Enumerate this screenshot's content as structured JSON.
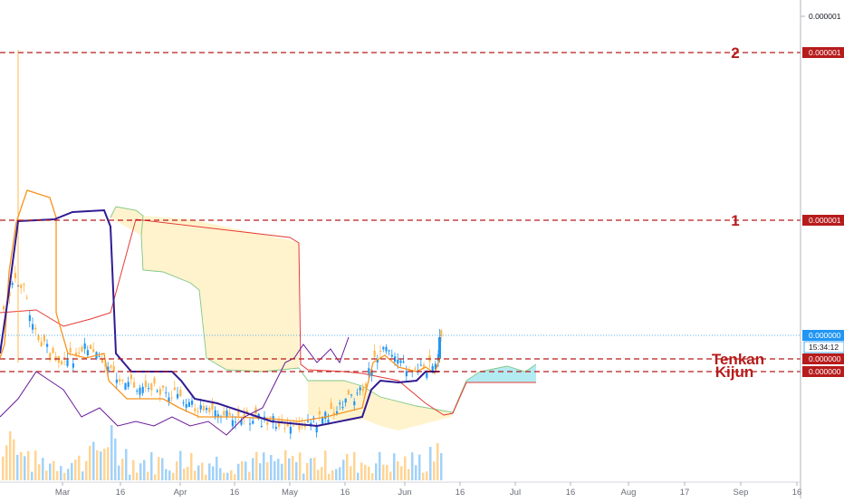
{
  "chart_data": {
    "type": "candlestick",
    "x_ticks": [
      "Mar",
      "16",
      "Apr",
      "16",
      "May",
      "16",
      "Jun",
      "16",
      "Jul",
      "16",
      "Aug",
      "17",
      "Sep",
      "16"
    ],
    "price_axis": {
      "top_label": "0.000001",
      "last_price": "0.000000",
      "countdown": "15:34:12"
    },
    "horizontal_lines": [
      {
        "id": "level-2",
        "label": "2",
        "price_label": "0.000001",
        "color": "#b71c1c",
        "style": "dashed"
      },
      {
        "id": "level-1",
        "label": "1",
        "price_label": "0.000001",
        "color": "#b71c1c",
        "style": "dashed"
      },
      {
        "id": "tenkan",
        "label": "Tenkan",
        "price_label": "0.000000",
        "color": "#b71c1c",
        "style": "dashed"
      },
      {
        "id": "kijun",
        "label": "Kijun",
        "price_label": "0.000000",
        "color": "#b71c1c",
        "style": "dashed"
      }
    ],
    "colors": {
      "up": "#2196f3",
      "down": "#ffb74d",
      "volume_up": "#90caf9",
      "volume_down": "#ffcc80",
      "tenkan_line": "#f7931e",
      "kijun_line": "#311b92",
      "chikou_line": "#6a1b9a",
      "span_a": "#81c784",
      "span_b": "#e53935",
      "cloud_bear": "#fff3cd",
      "cloud_bull": "#b2ebf2",
      "last_price_line": "#2196f3"
    }
  }
}
